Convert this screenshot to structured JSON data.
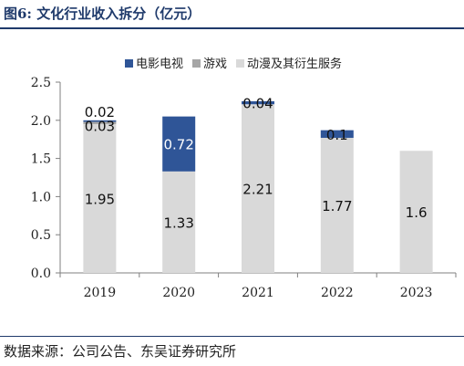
{
  "page": {
    "title": "图6:  文化行业收入拆分（亿元）",
    "source": "数据来源：公司公告、东吴证券研究所"
  },
  "chart_data": {
    "type": "bar",
    "stacked": true,
    "title": "文化行业收入拆分（亿元）",
    "categories": [
      "2019",
      "2020",
      "2021",
      "2022",
      "2023"
    ],
    "series": [
      {
        "name": "动漫及其衍生服务",
        "values": [
          1.95,
          1.33,
          2.21,
          1.77,
          1.6
        ],
        "color": "#d9d9d9",
        "labels": [
          "1.95",
          "1.33",
          "2.21",
          "1.77",
          "1.6"
        ]
      },
      {
        "name": "游戏",
        "values": [
          0.03,
          0,
          0,
          0,
          0
        ],
        "color": "#a6a6a6",
        "labels": [
          "0.03",
          "",
          "",
          "",
          ""
        ]
      },
      {
        "name": "电影电视",
        "values": [
          0.02,
          0.72,
          0.04,
          0.1,
          0
        ],
        "color": "#2f5597",
        "labels": [
          "0.02",
          "0.72",
          "0.04",
          "0.1",
          ""
        ]
      }
    ],
    "legend_order": [
      "电影电视",
      "游戏",
      "动漫及其衍生服务"
    ],
    "legend_position": "top",
    "ylim": [
      0,
      2.5
    ],
    "yticks": [
      "0.0",
      "0.5",
      "1.0",
      "1.5",
      "2.0",
      "2.5"
    ],
    "grid": false
  }
}
